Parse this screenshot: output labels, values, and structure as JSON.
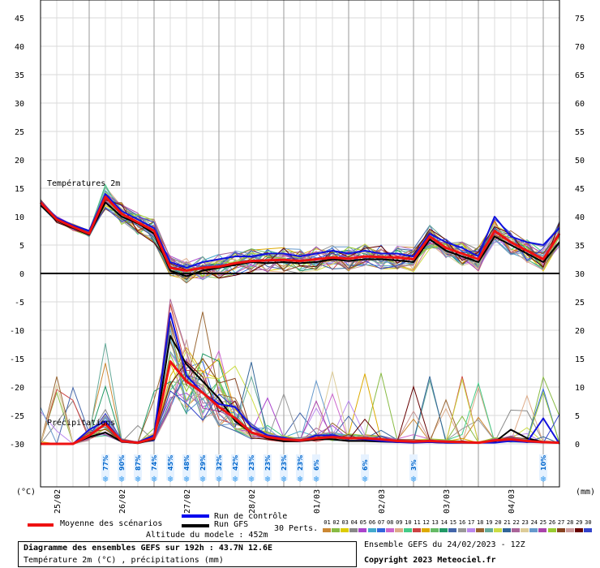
{
  "chart_data": {
    "type": "line",
    "title": "Diagramme des ensembles GEFS sur 192h : 43.7N 12.6E",
    "subtitle": "Température 2m (°C) , précipitations (mm)",
    "left_axis": {
      "label": "(°C)",
      "ticks": [
        45,
        40,
        35,
        30,
        25,
        20,
        15,
        10,
        5,
        0,
        -5,
        -10,
        -15,
        -20,
        -25,
        -30
      ],
      "range": [
        -30,
        45
      ]
    },
    "right_axis": {
      "label": "(mm)",
      "ticks": [
        75,
        70,
        65,
        60,
        55,
        50,
        45,
        40,
        35,
        30,
        25,
        20,
        15,
        10,
        5,
        0
      ],
      "range": [
        0,
        75
      ]
    },
    "x_dates": [
      "25/02",
      "26/02",
      "27/02",
      "28/02",
      "01/03",
      "02/03",
      "03/03",
      "04/03"
    ],
    "x_range_hours": [
      0,
      192
    ],
    "panel_labels": {
      "temp": "Températures 2m",
      "precip": "Précipitations"
    },
    "altitude": "Altitude du modele : 452m",
    "ensemble_info": "Ensemble GEFS du 24/02/2023 - 12Z",
    "copyright": "Copyright 2023 Meteociel.fr",
    "legend": {
      "mean": "Moyenne des scénarios",
      "control": "Run de contrôle",
      "gfs": "Run GFS",
      "perts": "30 Perts."
    },
    "member_labels": [
      "01",
      "02",
      "03",
      "04",
      "05",
      "06",
      "07",
      "08",
      "09",
      "10",
      "11",
      "12",
      "13",
      "14",
      "15",
      "16",
      "17",
      "18",
      "19",
      "20",
      "21",
      "22",
      "23",
      "24",
      "25",
      "26",
      "27",
      "28",
      "29",
      "30"
    ],
    "member_colors": [
      "#cc8833",
      "#88bb44",
      "#ddcc00",
      "#888888",
      "#aa44cc",
      "#44aacc",
      "#3366dd",
      "#cc66cc",
      "#ddaa88",
      "#44cc88",
      "#cc4444",
      "#ddaa00",
      "#66bb66",
      "#229966",
      "#4466aa",
      "#999999",
      "#bb88ee",
      "#996633",
      "#66aa99",
      "#ccdd44",
      "#336699",
      "#aa6699",
      "#ddcc99",
      "#6699cc",
      "#aa44aa",
      "#99cc33",
      "#884422",
      "#cc9999",
      "#660000",
      "#3344cc"
    ],
    "snow_probs": [
      {
        "h": 24,
        "p": "77%"
      },
      {
        "h": 30,
        "p": "90%"
      },
      {
        "h": 36,
        "p": "87%"
      },
      {
        "h": 42,
        "p": "74%"
      },
      {
        "h": 48,
        "p": "45%"
      },
      {
        "h": 54,
        "p": "48%"
      },
      {
        "h": 60,
        "p": "29%"
      },
      {
        "h": 66,
        "p": "32%"
      },
      {
        "h": 72,
        "p": "42%"
      },
      {
        "h": 78,
        "p": "23%"
      },
      {
        "h": 84,
        "p": "23%"
      },
      {
        "h": 90,
        "p": "23%"
      },
      {
        "h": 96,
        "p": "23%"
      },
      {
        "h": 102,
        "p": "6%"
      },
      {
        "h": 120,
        "p": "6%"
      },
      {
        "h": 138,
        "p": "3%"
      },
      {
        "h": 186,
        "p": "10%"
      }
    ],
    "series": [
      {
        "name": "Moyenne des scénarios",
        "kind": "temp",
        "x": [
          0,
          6,
          12,
          18,
          24,
          30,
          36,
          42,
          48,
          54,
          60,
          66,
          72,
          78,
          84,
          90,
          96,
          102,
          108,
          114,
          120,
          126,
          132,
          138,
          144,
          150,
          156,
          162,
          168,
          174,
          180,
          186,
          192
        ],
        "y": [
          12.5,
          9.5,
          8.2,
          7.0,
          13.5,
          10.5,
          9.0,
          7.5,
          1.0,
          0.5,
          1.0,
          1.2,
          1.8,
          2.2,
          2.3,
          2.4,
          2.2,
          2.5,
          2.8,
          2.6,
          3.0,
          2.9,
          2.8,
          2.5,
          6.5,
          4.5,
          3.5,
          2.5,
          7.5,
          5.5,
          4.0,
          2.5,
          7.0
        ]
      },
      {
        "name": "Run de contrôle",
        "kind": "temp",
        "x": [
          0,
          6,
          12,
          18,
          24,
          30,
          36,
          42,
          48,
          54,
          60,
          66,
          72,
          78,
          84,
          90,
          96,
          102,
          108,
          114,
          120,
          126,
          132,
          138,
          144,
          150,
          156,
          162,
          168,
          174,
          180,
          186,
          192
        ],
        "y": [
          12.3,
          9.8,
          8.5,
          7.5,
          14.0,
          11.0,
          9.5,
          8.0,
          2.0,
          1.0,
          2.0,
          2.5,
          3.0,
          3.0,
          3.5,
          3.5,
          3.0,
          3.5,
          4.0,
          3.5,
          4.0,
          3.5,
          3.5,
          3.0,
          7.0,
          5.5,
          4.5,
          3.0,
          10.0,
          6.5,
          5.5,
          5.0,
          8.0
        ]
      },
      {
        "name": "Run GFS",
        "kind": "temp",
        "x": [
          0,
          6,
          12,
          18,
          24,
          30,
          36,
          42,
          48,
          54,
          60,
          66,
          72,
          78,
          84,
          90,
          96,
          102,
          108,
          114,
          120,
          126,
          132,
          138,
          144,
          150,
          156,
          162,
          168,
          174,
          180,
          186,
          192
        ],
        "y": [
          12.0,
          9.3,
          8.0,
          6.8,
          12.5,
          10.0,
          8.8,
          7.0,
          0.5,
          -0.5,
          0.5,
          1.0,
          1.5,
          2.0,
          1.8,
          2.0,
          1.8,
          2.0,
          2.5,
          2.2,
          2.5,
          2.5,
          2.3,
          2.0,
          6.0,
          4.0,
          3.0,
          2.0,
          6.5,
          5.0,
          3.5,
          2.0,
          5.5
        ]
      },
      {
        "name": "Moyenne des scénarios",
        "kind": "precip",
        "x": [
          0,
          6,
          12,
          18,
          24,
          30,
          36,
          42,
          48,
          54,
          60,
          66,
          72,
          78,
          84,
          90,
          96,
          102,
          108,
          114,
          120,
          126,
          132,
          138,
          144,
          150,
          156,
          162,
          168,
          174,
          180,
          186,
          192
        ],
        "y": [
          0,
          0,
          0,
          1.5,
          3.5,
          0.5,
          0.2,
          1.0,
          14.5,
          11.0,
          9.0,
          6.5,
          4.5,
          2.0,
          1.2,
          0.8,
          0.6,
          1.0,
          1.2,
          1.0,
          1.0,
          0.8,
          0.5,
          0.4,
          0.5,
          0.4,
          0.3,
          0.2,
          0.6,
          0.8,
          0.5,
          0.3,
          0.2
        ]
      },
      {
        "name": "Run de contrôle",
        "kind": "precip",
        "x": [
          0,
          6,
          12,
          18,
          24,
          30,
          36,
          42,
          48,
          54,
          60,
          66,
          72,
          78,
          84,
          90,
          96,
          102,
          108,
          114,
          120,
          126,
          132,
          138,
          144,
          150,
          156,
          162,
          168,
          174,
          180,
          186,
          192
        ],
        "y": [
          0,
          0,
          0,
          2.5,
          4.0,
          0.5,
          0.3,
          1.5,
          23.0,
          12.0,
          9.0,
          7.0,
          6.5,
          3.0,
          1.5,
          1.0,
          0.5,
          1.5,
          1.5,
          1.0,
          0.8,
          0.5,
          0.3,
          0.2,
          0.3,
          0.2,
          0.2,
          0.2,
          0.2,
          0.5,
          0.3,
          4.5,
          0.0
        ]
      },
      {
        "name": "Run GFS",
        "kind": "precip",
        "x": [
          0,
          6,
          12,
          18,
          24,
          30,
          36,
          42,
          48,
          54,
          60,
          66,
          72,
          78,
          84,
          90,
          96,
          102,
          108,
          114,
          120,
          126,
          132,
          138,
          144,
          150,
          156,
          162,
          168,
          174,
          180,
          186,
          192
        ],
        "y": [
          0,
          0,
          0,
          1.2,
          2.0,
          0.4,
          0.1,
          0.8,
          19.0,
          14.0,
          11.0,
          8.0,
          4.0,
          2.0,
          1.0,
          0.5,
          0.5,
          0.8,
          0.8,
          0.5,
          0.5,
          0.4,
          0.3,
          0.3,
          0.3,
          0.2,
          0.2,
          0.2,
          0.3,
          2.5,
          1.0,
          0.3,
          0.2
        ]
      }
    ]
  }
}
